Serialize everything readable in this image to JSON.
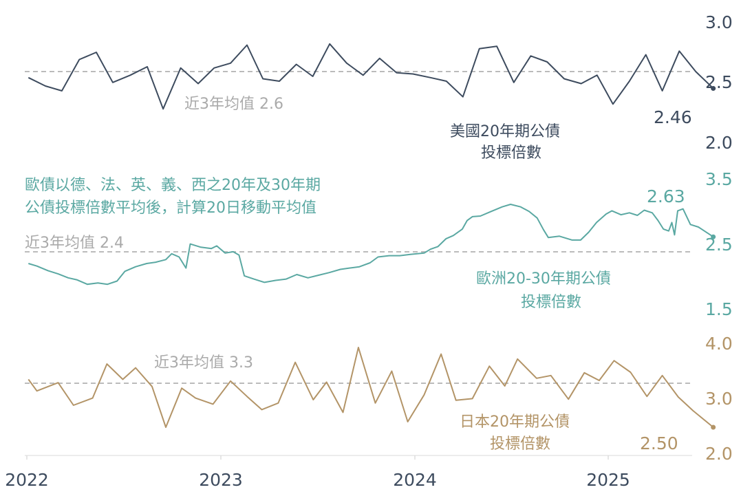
{
  "chart_data": {
    "type": "line",
    "x_axis": {
      "ticks": [
        "2022",
        "2023",
        "2024",
        "2025"
      ]
    },
    "panels": [
      {
        "name": "us",
        "color": "#3d4b5e",
        "yticks": [
          "3.0",
          "2.5",
          "2.0"
        ],
        "ylim": [
          2.0,
          3.0
        ],
        "average_line": 2.6,
        "average_label": "近3年均值 2.6",
        "series_label": [
          "美國20年期公債",
          "投標倍數"
        ],
        "last_value_label": "2.46",
        "points": [
          [
            "2022-01-04",
            2.55
          ],
          [
            "2022-02-05",
            2.48
          ],
          [
            "2022-03-08",
            2.44
          ],
          [
            "2022-04-10",
            2.7
          ],
          [
            "2022-05-12",
            2.76
          ],
          [
            "2022-06-12",
            2.51
          ],
          [
            "2022-07-15",
            2.57
          ],
          [
            "2022-08-16",
            2.64
          ],
          [
            "2022-09-15",
            2.29
          ],
          [
            "2022-10-18",
            2.63
          ],
          [
            "2022-11-20",
            2.5
          ],
          [
            "2022-12-20",
            2.63
          ],
          [
            "2023-01-20",
            2.67
          ],
          [
            "2023-02-20",
            2.82
          ],
          [
            "2023-03-22",
            2.54
          ],
          [
            "2023-04-22",
            2.52
          ],
          [
            "2023-05-24",
            2.66
          ],
          [
            "2023-06-24",
            2.56
          ],
          [
            "2023-07-26",
            2.83
          ],
          [
            "2023-08-27",
            2.67
          ],
          [
            "2023-09-27",
            2.57
          ],
          [
            "2023-10-28",
            2.71
          ],
          [
            "2023-11-29",
            2.59
          ],
          [
            "2023-12-30",
            2.58
          ],
          [
            "2024-02-01",
            2.55
          ],
          [
            "2024-03-02",
            2.52
          ],
          [
            "2024-04-02",
            2.39
          ],
          [
            "2024-05-03",
            2.79
          ],
          [
            "2024-06-05",
            2.81
          ],
          [
            "2024-07-07",
            2.51
          ],
          [
            "2024-08-08",
            2.73
          ],
          [
            "2024-09-08",
            2.68
          ],
          [
            "2024-10-10",
            2.54
          ],
          [
            "2024-11-11",
            2.5
          ],
          [
            "2024-12-11",
            2.57
          ],
          [
            "2025-01-10",
            2.33
          ],
          [
            "2025-02-10",
            2.52
          ],
          [
            "2025-03-13",
            2.74
          ],
          [
            "2025-04-13",
            2.44
          ],
          [
            "2025-05-15",
            2.77
          ],
          [
            "2025-06-15",
            2.6
          ],
          [
            "2025-07-18",
            2.46
          ]
        ]
      },
      {
        "name": "eu",
        "color": "#5aa8a2",
        "yticks": [
          "3.5",
          "2.5",
          "1.5"
        ],
        "ylim": [
          1.5,
          3.5
        ],
        "average_line": 2.4,
        "average_label": "近3年均值 2.4",
        "note": [
          "歐債以德、法、英、義、西之20年及30年期",
          "公債投標倍數平均後，計算20日移動平均值"
        ],
        "series_label": [
          "歐洲20-30年期公債",
          "投標倍數"
        ],
        "last_value_label": "2.63",
        "points": [
          [
            "2022-01-04",
            2.22
          ],
          [
            "2022-01-20",
            2.18
          ],
          [
            "2022-02-10",
            2.11
          ],
          [
            "2022-03-01",
            2.06
          ],
          [
            "2022-03-20",
            2.0
          ],
          [
            "2022-04-05",
            1.97
          ],
          [
            "2022-04-25",
            1.9
          ],
          [
            "2022-05-15",
            1.92
          ],
          [
            "2022-06-02",
            1.9
          ],
          [
            "2022-06-20",
            1.95
          ],
          [
            "2022-07-05",
            2.1
          ],
          [
            "2022-07-25",
            2.17
          ],
          [
            "2022-08-15",
            2.22
          ],
          [
            "2022-09-01",
            2.24
          ],
          [
            "2022-09-20",
            2.28
          ],
          [
            "2022-10-01",
            2.37
          ],
          [
            "2022-10-15",
            2.32
          ],
          [
            "2022-10-28",
            2.15
          ],
          [
            "2022-11-05",
            2.52
          ],
          [
            "2022-11-25",
            2.47
          ],
          [
            "2022-12-15",
            2.45
          ],
          [
            "2022-12-25",
            2.49
          ],
          [
            "2023-01-10",
            2.38
          ],
          [
            "2023-01-25",
            2.4
          ],
          [
            "2023-02-05",
            2.35
          ],
          [
            "2023-02-15",
            2.03
          ],
          [
            "2023-03-05",
            1.98
          ],
          [
            "2023-03-25",
            1.93
          ],
          [
            "2023-04-15",
            1.96
          ],
          [
            "2023-05-05",
            1.98
          ],
          [
            "2023-05-25",
            2.05
          ],
          [
            "2023-06-15",
            2.0
          ],
          [
            "2023-07-05",
            2.04
          ],
          [
            "2023-07-25",
            2.08
          ],
          [
            "2023-08-15",
            2.13
          ],
          [
            "2023-09-01",
            2.15
          ],
          [
            "2023-09-20",
            2.17
          ],
          [
            "2023-10-10",
            2.23
          ],
          [
            "2023-10-25",
            2.32
          ],
          [
            "2023-11-15",
            2.34
          ],
          [
            "2023-12-05",
            2.34
          ],
          [
            "2023-12-25",
            2.36
          ],
          [
            "2024-01-20",
            2.38
          ],
          [
            "2024-02-01",
            2.44
          ],
          [
            "2024-02-15",
            2.48
          ],
          [
            "2024-03-01",
            2.6
          ],
          [
            "2024-03-15",
            2.65
          ],
          [
            "2024-04-01",
            2.75
          ],
          [
            "2024-04-10",
            2.88
          ],
          [
            "2024-04-20",
            2.94
          ],
          [
            "2024-05-05",
            2.95
          ],
          [
            "2024-05-25",
            3.02
          ],
          [
            "2024-06-15",
            3.09
          ],
          [
            "2024-07-01",
            3.13
          ],
          [
            "2024-07-20",
            3.09
          ],
          [
            "2024-08-05",
            3.02
          ],
          [
            "2024-08-20",
            2.92
          ],
          [
            "2024-09-01",
            2.74
          ],
          [
            "2024-09-10",
            2.62
          ],
          [
            "2024-10-01",
            2.64
          ],
          [
            "2024-10-25",
            2.58
          ],
          [
            "2024-11-10",
            2.58
          ],
          [
            "2024-11-25",
            2.7
          ],
          [
            "2024-12-10",
            2.85
          ],
          [
            "2024-12-28",
            2.98
          ],
          [
            "2025-01-08",
            3.03
          ],
          [
            "2025-01-25",
            2.97
          ],
          [
            "2025-02-10",
            3.0
          ],
          [
            "2025-02-25",
            2.96
          ],
          [
            "2025-03-10",
            3.04
          ],
          [
            "2025-03-25",
            3.0
          ],
          [
            "2025-04-05",
            2.88
          ],
          [
            "2025-04-15",
            2.75
          ],
          [
            "2025-04-25",
            2.72
          ],
          [
            "2025-05-01",
            2.85
          ],
          [
            "2025-05-06",
            2.66
          ],
          [
            "2025-05-12",
            3.03
          ],
          [
            "2025-05-22",
            3.06
          ],
          [
            "2025-06-05",
            2.82
          ],
          [
            "2025-06-20",
            2.78
          ],
          [
            "2025-07-05",
            2.7
          ],
          [
            "2025-07-18",
            2.63
          ]
        ]
      },
      {
        "name": "jp",
        "color": "#b39467",
        "yticks": [
          "4.0",
          "3.0",
          "2.0"
        ],
        "ylim": [
          2.0,
          4.0
        ],
        "average_line": 3.3,
        "average_label": "近3年均值 3.3",
        "series_label": [
          "日本20年期公債",
          "投標倍數"
        ],
        "last_value_label": "2.50",
        "points": [
          [
            "2022-01-04",
            3.37
          ],
          [
            "2022-01-20",
            3.16
          ],
          [
            "2022-03-01",
            3.31
          ],
          [
            "2022-03-30",
            2.9
          ],
          [
            "2022-05-05",
            3.03
          ],
          [
            "2022-06-01",
            3.65
          ],
          [
            "2022-07-01",
            3.37
          ],
          [
            "2022-07-25",
            3.58
          ],
          [
            "2022-08-25",
            3.24
          ],
          [
            "2022-09-20",
            2.5
          ],
          [
            "2022-10-20",
            3.21
          ],
          [
            "2022-11-15",
            3.03
          ],
          [
            "2022-12-18",
            2.92
          ],
          [
            "2023-01-20",
            3.34
          ],
          [
            "2023-02-20",
            3.06
          ],
          [
            "2023-03-20",
            2.82
          ],
          [
            "2023-04-20",
            2.94
          ],
          [
            "2023-05-22",
            3.68
          ],
          [
            "2023-06-25",
            3.0
          ],
          [
            "2023-07-20",
            3.32
          ],
          [
            "2023-08-20",
            2.77
          ],
          [
            "2023-09-18",
            3.95
          ],
          [
            "2023-10-20",
            2.94
          ],
          [
            "2023-11-20",
            3.52
          ],
          [
            "2023-12-20",
            2.6
          ],
          [
            "2024-01-20",
            3.09
          ],
          [
            "2024-02-21",
            3.83
          ],
          [
            "2024-03-20",
            2.99
          ],
          [
            "2024-04-20",
            3.02
          ],
          [
            "2024-05-22",
            3.61
          ],
          [
            "2024-06-20",
            3.25
          ],
          [
            "2024-07-14",
            3.74
          ],
          [
            "2024-08-19",
            3.39
          ],
          [
            "2024-09-15",
            3.44
          ],
          [
            "2024-10-18",
            3.01
          ],
          [
            "2024-11-17",
            3.49
          ],
          [
            "2024-12-15",
            3.35
          ],
          [
            "2025-01-12",
            3.71
          ],
          [
            "2025-02-12",
            3.5
          ],
          [
            "2025-03-15",
            3.06
          ],
          [
            "2025-04-13",
            3.44
          ],
          [
            "2025-05-13",
            3.05
          ],
          [
            "2025-06-10",
            2.8
          ],
          [
            "2025-07-18",
            2.5
          ]
        ]
      }
    ]
  }
}
